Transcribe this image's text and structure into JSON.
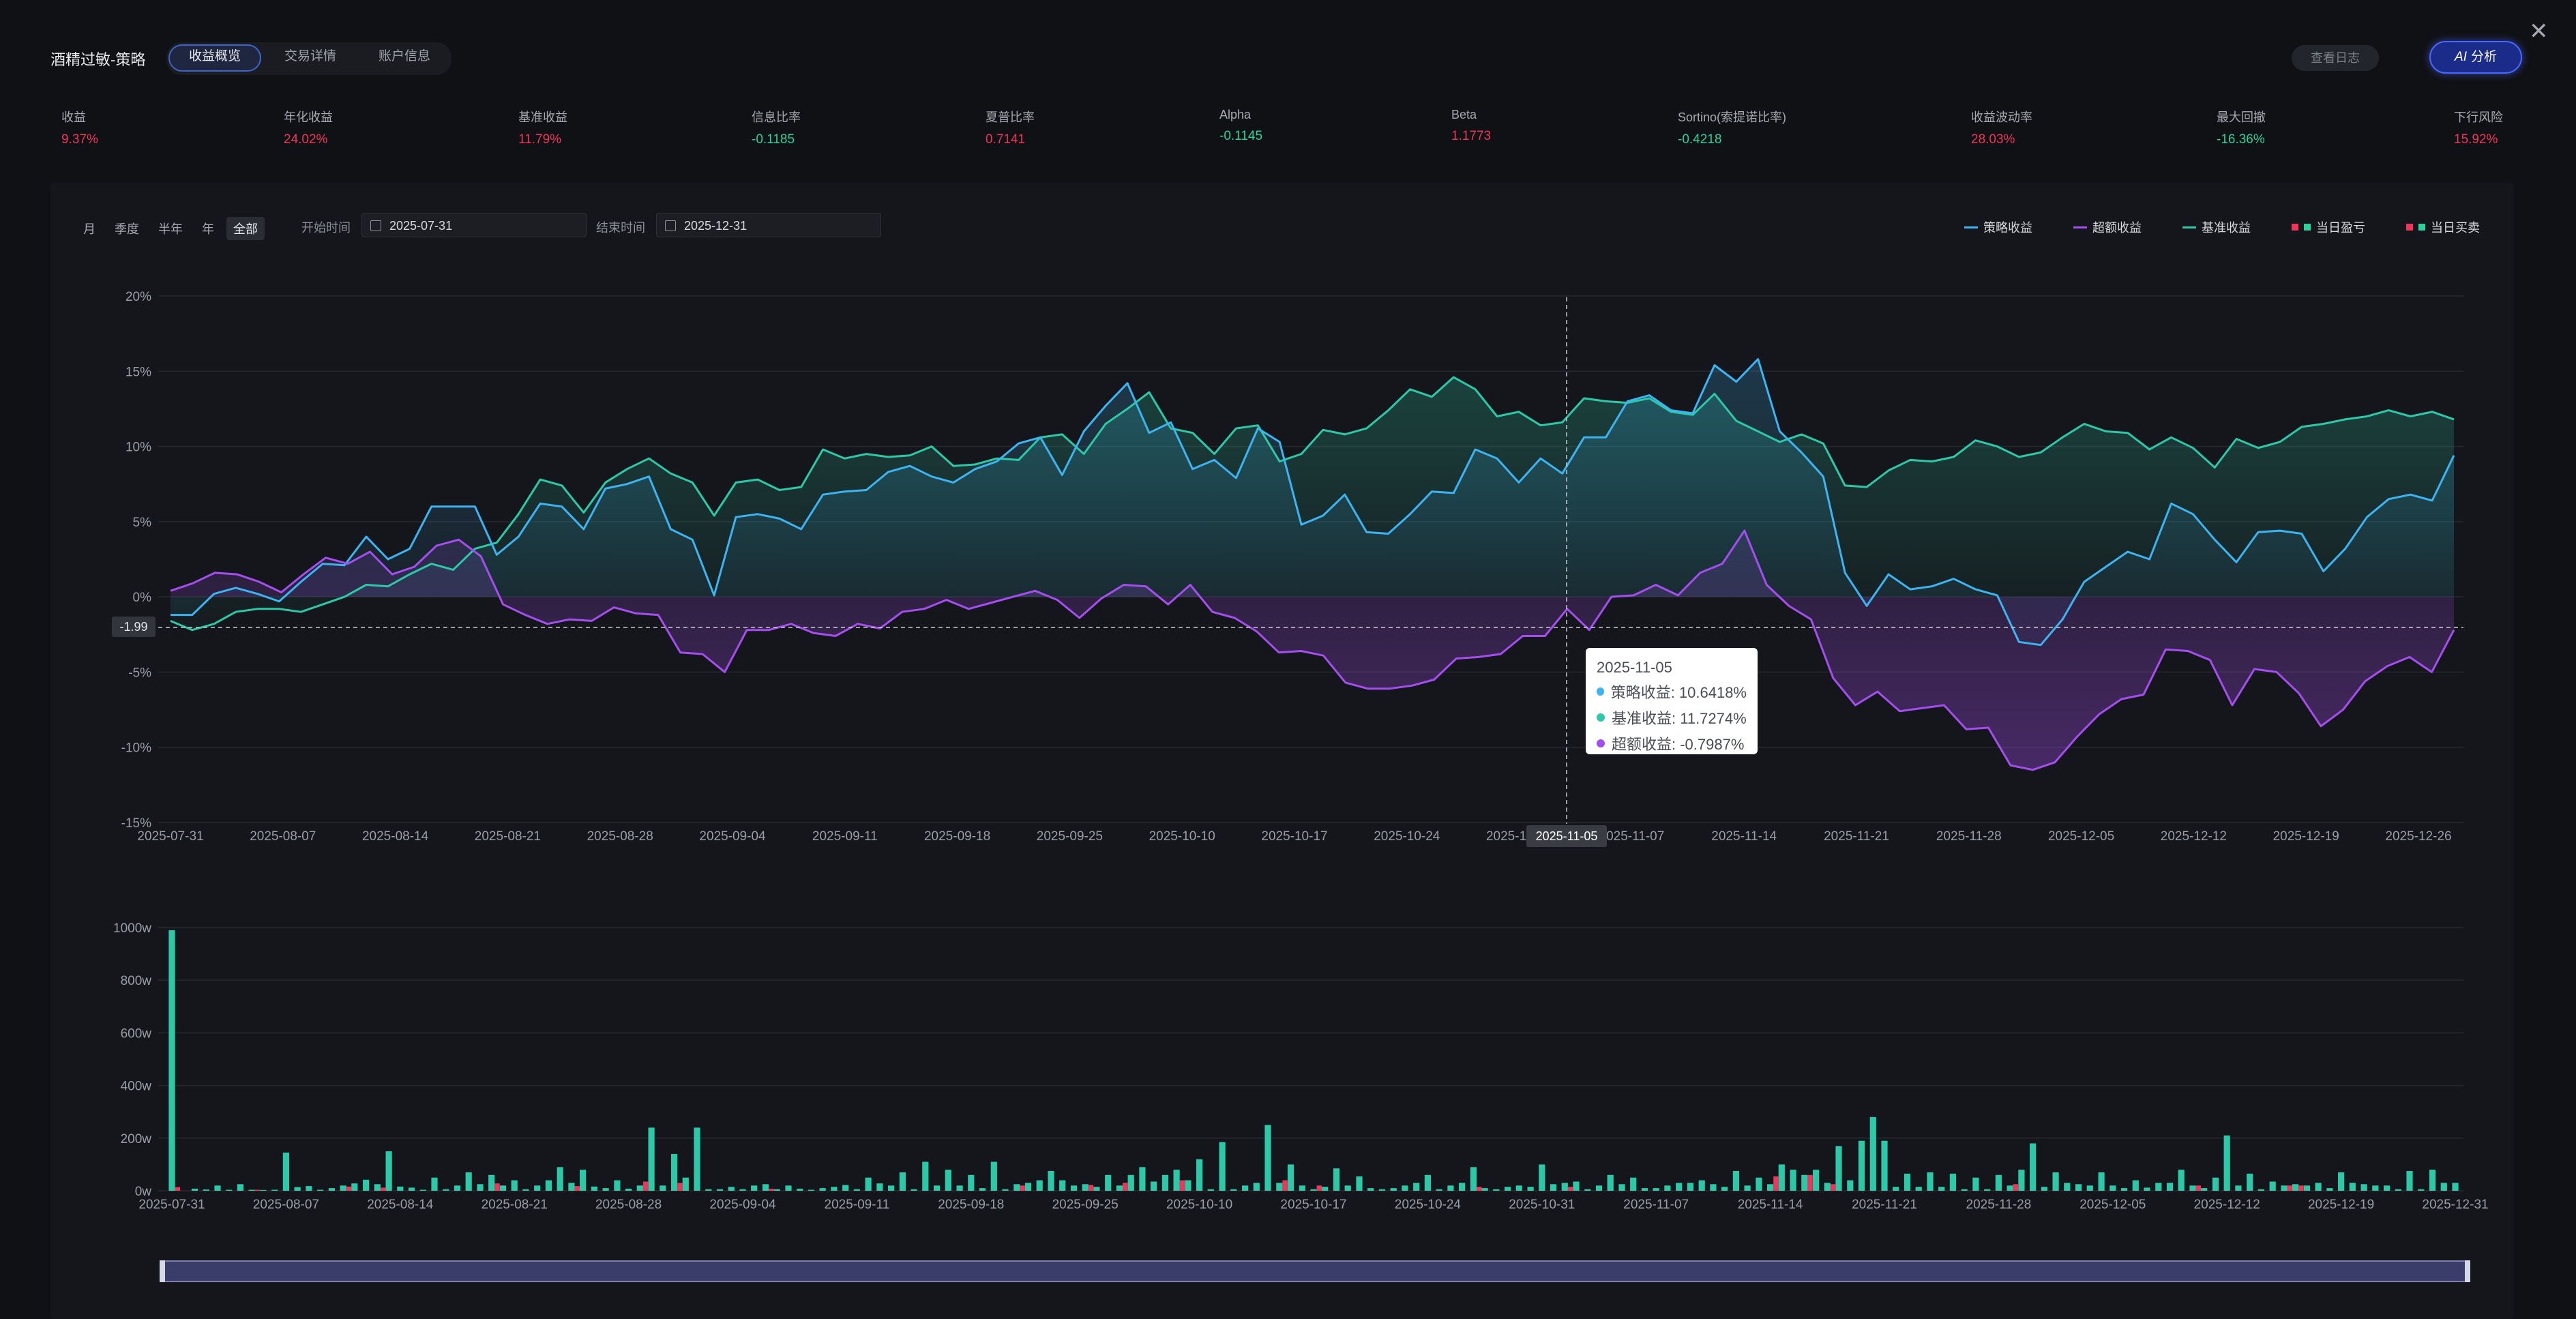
{
  "header": {
    "title": "酒精过敏-策略",
    "tabs": [
      {
        "label": "收益概览",
        "active": true
      },
      {
        "label": "交易详情",
        "active": false
      },
      {
        "label": "账户信息",
        "active": false
      }
    ],
    "log_button": "查看日志",
    "ai_button": "分析",
    "ai_prefix": "AI",
    "close_glyph": "✕"
  },
  "metrics": [
    {
      "label": "收益",
      "value": "9.37%",
      "tone": "pos"
    },
    {
      "label": "年化收益",
      "value": "24.02%",
      "tone": "pos"
    },
    {
      "label": "基准收益",
      "value": "11.79%",
      "tone": "pos"
    },
    {
      "label": "信息比率",
      "value": "-0.1185",
      "tone": "neg"
    },
    {
      "label": "夏普比率",
      "value": "0.7141",
      "tone": "pos"
    },
    {
      "label": "Alpha",
      "value": "-0.1145",
      "tone": "neg"
    },
    {
      "label": "Beta",
      "value": "1.1773",
      "tone": "pos"
    },
    {
      "label": "Sortino(索提诺比率)",
      "value": "-0.4218",
      "tone": "neg"
    },
    {
      "label": "收益波动率",
      "value": "28.03%",
      "tone": "pos"
    },
    {
      "label": "最大回撤",
      "value": "-16.36%",
      "tone": "neg"
    },
    {
      "label": "下行风险",
      "value": "15.92%",
      "tone": "pos"
    }
  ],
  "controls": {
    "ranges": [
      {
        "label": "月",
        "active": false
      },
      {
        "label": "季度",
        "active": false
      },
      {
        "label": "半年",
        "active": false
      },
      {
        "label": "年",
        "active": false
      },
      {
        "label": "全部",
        "active": true
      }
    ],
    "start_label": "开始时间",
    "start_value": "2025-07-31",
    "end_label": "结束时间",
    "end_value": "2025-12-31"
  },
  "legend": [
    {
      "label": "策略收益",
      "color": "#3db4f2",
      "kind": "line"
    },
    {
      "label": "超额收益",
      "color": "#a54ef0",
      "kind": "line"
    },
    {
      "label": "基准收益",
      "color": "#2bc9a8",
      "kind": "line"
    },
    {
      "label": "当日盈亏",
      "colors": [
        "#f0355a",
        "#2bd39a"
      ],
      "kind": "squares"
    },
    {
      "label": "当日买卖",
      "colors": [
        "#f0355a",
        "#2bd39a"
      ],
      "kind": "squares"
    }
  ],
  "tooltip": {
    "date": "2025-11-05",
    "rows": [
      {
        "label": "策略收益: 10.6418%",
        "color": "#3db4f2"
      },
      {
        "label": "基准收益: 11.7274%",
        "color": "#2bc9a8"
      },
      {
        "label": "超额收益: -0.7987%",
        "color": "#a54ef0"
      }
    ]
  },
  "pointer_date": "2025-11-05",
  "crosshair_value": "-1.99",
  "chart_data": [
    {
      "type": "line",
      "ylim": [
        -15,
        20
      ],
      "yticks": [
        "20%",
        "15%",
        "10%",
        "5%",
        "0%",
        "-5%",
        "-10%",
        "-15%"
      ],
      "ytick_values": [
        20,
        15,
        10,
        5,
        0,
        -5,
        -10,
        -15
      ],
      "xticks": [
        "2025-07-31",
        "2025-08-07",
        "2025-08-14",
        "2025-08-21",
        "2025-08-28",
        "2025-09-04",
        "2025-09-11",
        "2025-09-18",
        "2025-09-25",
        "2025-10-10",
        "2025-10-17",
        "2025-10-24",
        "2025-10-31",
        "2025-11-07",
        "2025-11-14",
        "2025-11-21",
        "2025-11-28",
        "2025-12-05",
        "2025-12-12",
        "2025-12-19",
        "2025-12-26"
      ],
      "series": [
        {
          "name": "策略收益",
          "color": "#3db4f2",
          "values": [
            -1.2,
            -1.2,
            0.2,
            0.6,
            0.2,
            -0.3,
            1.0,
            2.2,
            2.1,
            4.0,
            2.5,
            3.2,
            6.0,
            6.0,
            6.0,
            2.8,
            4.0,
            6.2,
            6.0,
            4.5,
            7.2,
            7.5,
            8.0,
            4.5,
            3.8,
            0.1,
            5.3,
            5.5,
            5.2,
            4.5,
            6.8,
            7.0,
            7.1,
            8.3,
            8.7,
            8.0,
            7.6,
            8.5,
            9.0,
            10.2,
            10.6,
            8.1,
            11.0,
            12.7,
            14.2,
            10.9,
            11.6,
            8.5,
            9.1,
            7.9,
            11.2,
            10.3,
            4.8,
            5.4,
            6.8,
            4.3,
            4.2,
            5.5,
            7.0,
            6.9,
            9.8,
            9.2,
            7.6,
            9.2,
            8.2,
            10.6,
            10.6,
            13.0,
            13.4,
            12.4,
            12.2,
            15.4,
            14.3,
            15.8,
            11.0,
            9.6,
            8.0,
            1.6,
            -0.6,
            1.5,
            0.5,
            0.7,
            1.2,
            0.5,
            0.1,
            -3.0,
            -3.2,
            -1.5,
            1.0,
            2.0,
            3.0,
            2.5,
            6.2,
            5.5,
            3.8,
            2.3,
            4.3,
            4.4,
            4.2,
            1.7,
            3.2,
            5.3,
            6.5,
            6.8,
            6.4,
            9.4
          ]
        },
        {
          "name": "基准收益",
          "color": "#2bc9a8",
          "values": [
            -1.6,
            -2.2,
            -1.8,
            -1.0,
            -0.8,
            -0.8,
            -1.0,
            -0.5,
            0.0,
            0.8,
            0.7,
            1.5,
            2.2,
            1.8,
            3.2,
            3.6,
            5.5,
            7.8,
            7.4,
            5.6,
            7.6,
            8.5,
            9.2,
            8.2,
            7.6,
            5.4,
            7.6,
            7.8,
            7.1,
            7.3,
            9.8,
            9.2,
            9.5,
            9.3,
            9.4,
            10.0,
            8.7,
            8.8,
            9.2,
            9.1,
            10.6,
            10.8,
            9.5,
            11.5,
            12.5,
            13.6,
            11.2,
            10.9,
            9.5,
            11.2,
            11.4,
            9.0,
            9.5,
            11.1,
            10.8,
            11.2,
            12.4,
            13.8,
            13.3,
            14.6,
            13.8,
            12.0,
            12.3,
            11.4,
            11.6,
            13.2,
            13.0,
            12.9,
            13.2,
            12.3,
            12.1,
            13.5,
            11.7,
            11.0,
            10.3,
            10.8,
            10.2,
            7.4,
            7.3,
            8.4,
            9.1,
            9.0,
            9.3,
            10.4,
            10.0,
            9.3,
            9.6,
            10.6,
            11.5,
            11.0,
            10.9,
            9.8,
            10.6,
            9.9,
            8.6,
            10.5,
            9.9,
            10.3,
            11.3,
            11.5,
            11.8,
            12.0,
            12.4,
            12.0,
            12.3,
            11.8
          ]
        },
        {
          "name": "超额收益",
          "color": "#a54ef0",
          "values": [
            0.4,
            0.9,
            1.6,
            1.5,
            1.0,
            0.3,
            1.5,
            2.6,
            2.2,
            3.0,
            1.5,
            2.0,
            3.4,
            3.8,
            2.7,
            -0.5,
            -1.2,
            -1.8,
            -1.5,
            -1.6,
            -0.7,
            -1.1,
            -1.2,
            -3.7,
            -3.8,
            -5.0,
            -2.2,
            -2.2,
            -1.8,
            -2.4,
            -2.6,
            -1.8,
            -2.1,
            -1.0,
            -0.8,
            -0.2,
            -0.8,
            -0.4,
            0.0,
            0.4,
            -0.2,
            -1.4,
            -0.1,
            0.8,
            0.7,
            -0.5,
            0.8,
            -1.0,
            -1.4,
            -2.3,
            -3.7,
            -3.6,
            -3.9,
            -5.7,
            -6.1,
            -6.1,
            -5.9,
            -5.5,
            -4.1,
            -4.0,
            -3.8,
            -2.6,
            -2.6,
            -0.8,
            -2.2,
            0.0,
            0.1,
            0.8,
            0.1,
            1.6,
            2.2,
            4.4,
            0.8,
            -0.6,
            -1.5,
            -5.4,
            -7.2,
            -6.3,
            -7.6,
            -7.4,
            -7.2,
            -8.8,
            -8.7,
            -11.2,
            -11.5,
            -11.0,
            -9.3,
            -7.8,
            -6.8,
            -6.5,
            -3.5,
            -3.6,
            -4.2,
            -7.2,
            -4.8,
            -5.0,
            -6.4,
            -8.6,
            -7.5,
            -5.6,
            -4.6,
            -4.0,
            -5.0,
            -2.2
          ]
        }
      ]
    },
    {
      "type": "bar",
      "ylim": [
        0,
        1000
      ],
      "yticks": [
        "1000w",
        "800w",
        "600w",
        "400w",
        "200w",
        "0w"
      ],
      "ytick_values": [
        1000,
        800,
        600,
        400,
        200,
        0
      ],
      "xticks": [
        "2025-07-31",
        "2025-08-07",
        "2025-08-14",
        "2025-08-21",
        "2025-08-28",
        "2025-09-04",
        "2025-09-11",
        "2025-09-18",
        "2025-09-25",
        "2025-10-10",
        "2025-10-17",
        "2025-10-24",
        "2025-10-31",
        "2025-11-07",
        "2025-11-14",
        "2025-11-21",
        "2025-11-28",
        "2025-12-05",
        "2025-12-12",
        "2025-12-19",
        "2025-12-31"
      ],
      "series": [
        {
          "name": "当日买卖",
          "color": "#2bc9a8",
          "values": [
            990,
            0,
            8,
            5,
            20,
            4,
            25,
            4,
            3,
            4,
            145,
            14,
            18,
            4,
            10,
            20,
            28,
            42,
            25,
            150,
            16,
            12,
            4,
            50,
            6,
            20,
            70,
            25,
            60,
            20,
            40,
            6,
            20,
            40,
            90,
            30,
            80,
            16,
            10,
            40,
            8,
            20,
            240,
            20,
            140,
            50,
            240,
            6,
            6,
            15,
            6,
            20,
            25,
            6,
            20,
            8,
            4,
            10,
            15,
            22,
            6,
            50,
            28,
            20,
            70,
            6,
            110,
            20,
            80,
            20,
            60,
            10,
            110,
            6,
            25,
            30,
            40,
            75,
            40,
            20,
            25,
            15,
            60,
            20,
            60,
            90,
            35,
            60,
            80,
            40,
            120,
            6,
            185,
            6,
            20,
            30,
            250,
            30,
            100,
            20,
            6,
            15,
            85,
            20,
            55,
            10,
            6,
            10,
            20,
            30,
            60,
            6,
            20,
            30,
            90,
            10,
            6,
            15,
            20,
            15,
            100,
            25,
            30,
            35,
            6,
            20,
            60,
            25,
            50,
            10,
            10,
            20,
            30,
            30,
            40,
            25,
            15,
            75,
            20,
            50,
            25,
            100,
            80,
            60,
            80,
            30,
            170,
            40,
            190,
            280,
            190,
            15,
            65,
            15,
            70,
            15,
            65,
            6,
            50,
            6,
            60,
            20,
            80,
            180,
            15,
            70,
            30,
            25,
            20,
            70,
            20,
            10,
            40,
            12,
            30,
            30,
            80,
            20,
            10,
            50,
            210,
            20,
            65,
            6,
            35,
            20,
            25,
            20,
            30,
            10,
            70,
            30,
            25,
            20,
            20,
            6,
            75,
            6,
            80,
            30,
            30
          ]
        },
        {
          "name": "当日盈亏",
          "color": "#f0355a",
          "values": [
            14,
            0,
            0,
            0,
            0,
            0,
            0,
            4,
            0,
            0,
            0,
            0,
            0,
            0,
            0,
            16,
            0,
            0,
            12,
            0,
            0,
            0,
            0,
            0,
            0,
            0,
            0,
            0,
            28,
            0,
            0,
            0,
            0,
            0,
            0,
            18,
            0,
            0,
            0,
            0,
            0,
            35,
            0,
            0,
            30,
            0,
            0,
            0,
            0,
            0,
            0,
            0,
            8,
            0,
            0,
            0,
            0,
            0,
            0,
            0,
            0,
            0,
            0,
            0,
            0,
            0,
            0,
            0,
            0,
            0,
            0,
            0,
            0,
            0,
            20,
            0,
            0,
            0,
            0,
            0,
            22,
            0,
            0,
            30,
            0,
            0,
            0,
            0,
            40,
            0,
            0,
            0,
            0,
            0,
            0,
            0,
            0,
            40,
            0,
            0,
            20,
            0,
            0,
            0,
            0,
            0,
            0,
            0,
            0,
            0,
            0,
            0,
            0,
            0,
            15,
            0,
            0,
            0,
            0,
            0,
            0,
            0,
            15,
            0,
            0,
            0,
            0,
            0,
            0,
            0,
            0,
            0,
            0,
            0,
            0,
            0,
            0,
            0,
            0,
            0,
            55,
            0,
            0,
            60,
            0,
            25,
            0,
            0,
            0,
            0,
            0,
            0,
            0,
            0,
            0,
            0,
            0,
            0,
            0,
            0,
            0,
            25,
            0,
            0,
            0,
            0,
            0,
            0,
            0,
            0,
            0,
            0,
            0,
            0,
            0,
            0,
            0,
            20,
            0,
            0,
            0,
            0,
            0,
            0,
            0,
            20,
            20,
            0,
            0,
            0,
            0,
            0,
            0,
            0,
            0,
            0,
            0,
            0
          ]
        }
      ]
    }
  ]
}
